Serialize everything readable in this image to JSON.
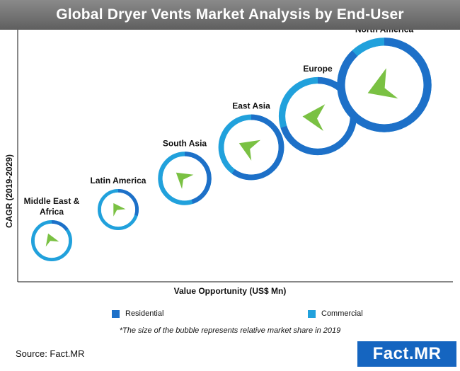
{
  "title": "Global Dryer Vents Market Analysis by End-User",
  "chart_data": {
    "type": "bubble",
    "xlabel": "Value Opportunity (US$ Mn)",
    "ylabel": "CAGR (2019-2029)",
    "legend_position": "bottom",
    "series_legend": [
      {
        "name": "Residential",
        "color": "#1d70c8"
      },
      {
        "name": "Commercial",
        "color": "#21a1dc"
      }
    ],
    "bubbles": [
      {
        "label": [
          "Middle East &",
          "Africa"
        ],
        "x": 1,
        "y": 1,
        "size": 1,
        "residential_share": 0.15,
        "commercial_share": 0.85
      },
      {
        "label": [
          "Latin America"
        ],
        "x": 2,
        "y": 2,
        "size": 1,
        "residential_share": 0.3,
        "commercial_share": 0.7
      },
      {
        "label": [
          "South Asia"
        ],
        "x": 3,
        "y": 3,
        "size": 1.3,
        "residential_share": 0.45,
        "commercial_share": 0.55
      },
      {
        "label": [
          "East Asia"
        ],
        "x": 4,
        "y": 4,
        "size": 1.6,
        "residential_share": 0.6,
        "commercial_share": 0.4
      },
      {
        "label": [
          "Europe"
        ],
        "x": 5,
        "y": 5,
        "size": 1.9,
        "residential_share": 0.7,
        "commercial_share": 0.3
      },
      {
        "label": [
          "North America"
        ],
        "x": 6,
        "y": 6,
        "size": 2.3,
        "residential_share": 0.88,
        "commercial_share": 0.12
      }
    ]
  },
  "note": "*The size of the bubble represents  relative market share in 2019",
  "source": "Source: Fact.MR",
  "logo_text": "Fact.MR"
}
